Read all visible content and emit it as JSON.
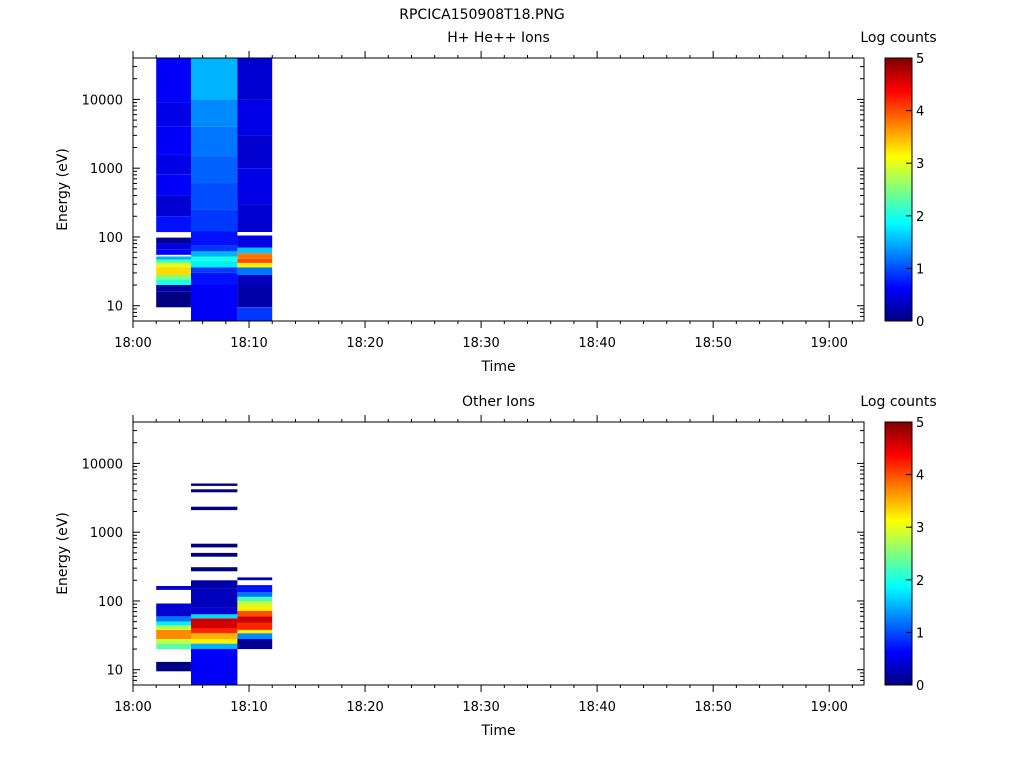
{
  "figure": {
    "filename": "RPCICA150908T18.PNG"
  },
  "chart_data": [
    {
      "type": "heatmap",
      "title": "H+ He++ Ions",
      "xlabel": "Time",
      "ylabel": "Energy (eV)",
      "x_scale": "time",
      "y_scale": "log",
      "xlim": [
        "18:00",
        "19:03"
      ],
      "ylim": [
        6,
        40000
      ],
      "x_ticks": [
        "18:00",
        "18:10",
        "18:20",
        "18:30",
        "18:40",
        "18:50",
        "19:00"
      ],
      "y_ticks": [
        "10",
        "100",
        "1000",
        "10000"
      ],
      "colorbar": {
        "label": "Log counts",
        "range": [
          0,
          5
        ],
        "ticks": [
          "0",
          "1",
          "2",
          "3",
          "4",
          "5"
        ],
        "colormap": "jet"
      },
      "columns": [
        {
          "start": "18:02",
          "end": "18:05",
          "cells": [
            {
              "e0": 9.5,
              "e1": 16,
              "v": 0.0
            },
            {
              "e0": 16,
              "e1": 20,
              "v": 0.2
            },
            {
              "e0": 20,
              "e1": 24,
              "v": 2.0
            },
            {
              "e0": 24,
              "e1": 28,
              "v": 2.5
            },
            {
              "e0": 28,
              "e1": 36,
              "v": 3.3
            },
            {
              "e0": 36,
              "e1": 42,
              "v": 3.0
            },
            {
              "e0": 42,
              "e1": 47,
              "v": 2.2
            },
            {
              "e0": 47,
              "e1": 52,
              "v": 1.5
            },
            {
              "e0": 55,
              "e1": 65,
              "v": 0.6
            },
            {
              "e0": 65,
              "e1": 80,
              "v": 0.5
            },
            {
              "e0": 80,
              "e1": 98,
              "v": 0.1
            },
            {
              "e0": 118,
              "e1": 200,
              "v": 0.7
            },
            {
              "e0": 200,
              "e1": 400,
              "v": 0.4
            },
            {
              "e0": 400,
              "e1": 800,
              "v": 0.6
            },
            {
              "e0": 800,
              "e1": 1600,
              "v": 0.5
            },
            {
              "e0": 1600,
              "e1": 4000,
              "v": 0.6
            },
            {
              "e0": 4000,
              "e1": 9000,
              "v": 0.5
            },
            {
              "e0": 9000,
              "e1": 40000,
              "v": 0.6
            }
          ]
        },
        {
          "start": "18:05",
          "end": "18:09",
          "cells": [
            {
              "e0": 6,
              "e1": 20,
              "v": 0.6
            },
            {
              "e0": 20,
              "e1": 30,
              "v": 0.7
            },
            {
              "e0": 30,
              "e1": 36,
              "v": 0.9
            },
            {
              "e0": 36,
              "e1": 44,
              "v": 1.8
            },
            {
              "e0": 44,
              "e1": 52,
              "v": 2.0
            },
            {
              "e0": 52,
              "e1": 62,
              "v": 1.5
            },
            {
              "e0": 62,
              "e1": 75,
              "v": 0.9
            },
            {
              "e0": 75,
              "e1": 120,
              "v": 0.7
            },
            {
              "e0": 120,
              "e1": 250,
              "v": 0.9
            },
            {
              "e0": 250,
              "e1": 600,
              "v": 1.0
            },
            {
              "e0": 600,
              "e1": 1500,
              "v": 1.1
            },
            {
              "e0": 1500,
              "e1": 4000,
              "v": 1.2
            },
            {
              "e0": 4000,
              "e1": 10000,
              "v": 1.3
            },
            {
              "e0": 10000,
              "e1": 40000,
              "v": 1.5
            }
          ]
        },
        {
          "start": "18:09",
          "end": "18:12",
          "cells": [
            {
              "e0": 6,
              "e1": 9.5,
              "v": 0.9
            },
            {
              "e0": 9.5,
              "e1": 20,
              "v": 0.2
            },
            {
              "e0": 20,
              "e1": 28,
              "v": 0.3
            },
            {
              "e0": 28,
              "e1": 36,
              "v": 1.2
            },
            {
              "e0": 36,
              "e1": 42,
              "v": 3.2
            },
            {
              "e0": 42,
              "e1": 48,
              "v": 4.0
            },
            {
              "e0": 48,
              "e1": 58,
              "v": 3.8
            },
            {
              "e0": 58,
              "e1": 70,
              "v": 1.6
            },
            {
              "e0": 70,
              "e1": 105,
              "v": 0.5
            },
            {
              "e0": 118,
              "e1": 300,
              "v": 0.4
            },
            {
              "e0": 300,
              "e1": 1000,
              "v": 0.5
            },
            {
              "e0": 1000,
              "e1": 3000,
              "v": 0.4
            },
            {
              "e0": 3000,
              "e1": 10000,
              "v": 0.5
            },
            {
              "e0": 10000,
              "e1": 40000,
              "v": 0.4
            }
          ]
        }
      ]
    },
    {
      "type": "heatmap",
      "title": "Other Ions",
      "xlabel": "Time",
      "ylabel": "Energy (eV)",
      "x_scale": "time",
      "y_scale": "log",
      "xlim": [
        "18:00",
        "19:03"
      ],
      "ylim": [
        6,
        40000
      ],
      "x_ticks": [
        "18:00",
        "18:10",
        "18:20",
        "18:30",
        "18:40",
        "18:50",
        "19:00"
      ],
      "y_ticks": [
        "10",
        "100",
        "1000",
        "10000"
      ],
      "colorbar": {
        "label": "Log counts",
        "range": [
          0,
          5
        ],
        "ticks": [
          "0",
          "1",
          "2",
          "3",
          "4",
          "5"
        ],
        "colormap": "jet"
      },
      "columns": [
        {
          "start": "18:02",
          "end": "18:05",
          "cells": [
            {
              "e0": 9.5,
              "e1": 13,
              "v": 0.0
            },
            {
              "e0": 20,
              "e1": 24,
              "v": 2.3
            },
            {
              "e0": 24,
              "e1": 28,
              "v": 2.8
            },
            {
              "e0": 28,
              "e1": 38,
              "v": 3.7
            },
            {
              "e0": 38,
              "e1": 44,
              "v": 2.8
            },
            {
              "e0": 44,
              "e1": 50,
              "v": 1.8
            },
            {
              "e0": 50,
              "e1": 60,
              "v": 1.2
            },
            {
              "e0": 60,
              "e1": 92,
              "v": 0.4
            },
            {
              "e0": 145,
              "e1": 165,
              "v": 0.4
            }
          ]
        },
        {
          "start": "18:05",
          "end": "18:09",
          "cells": [
            {
              "e0": 6,
              "e1": 20,
              "v": 0.6
            },
            {
              "e0": 20,
              "e1": 24,
              "v": 1.5
            },
            {
              "e0": 24,
              "e1": 28,
              "v": 3.2
            },
            {
              "e0": 28,
              "e1": 34,
              "v": 3.5
            },
            {
              "e0": 34,
              "e1": 40,
              "v": 4.2
            },
            {
              "e0": 40,
              "e1": 56,
              "v": 4.6
            },
            {
              "e0": 56,
              "e1": 64,
              "v": 1.7
            },
            {
              "e0": 64,
              "e1": 80,
              "v": 0.4
            },
            {
              "e0": 80,
              "e1": 150,
              "v": 0.3
            },
            {
              "e0": 150,
              "e1": 200,
              "v": 0.2
            },
            {
              "e0": 270,
              "e1": 310,
              "v": 0.0
            },
            {
              "e0": 440,
              "e1": 500,
              "v": 0.0
            },
            {
              "e0": 600,
              "e1": 680,
              "v": 0.0
            },
            {
              "e0": 2100,
              "e1": 2350,
              "v": 0.0
            },
            {
              "e0": 3800,
              "e1": 4200,
              "v": 0.0
            },
            {
              "e0": 4700,
              "e1": 5100,
              "v": 0.0
            }
          ]
        },
        {
          "start": "18:09",
          "end": "18:12",
          "cells": [
            {
              "e0": 20,
              "e1": 28,
              "v": 0.1
            },
            {
              "e0": 28,
              "e1": 34,
              "v": 1.3
            },
            {
              "e0": 34,
              "e1": 38,
              "v": 3.2
            },
            {
              "e0": 38,
              "e1": 48,
              "v": 4.2
            },
            {
              "e0": 48,
              "e1": 60,
              "v": 4.6
            },
            {
              "e0": 60,
              "e1": 72,
              "v": 4.0
            },
            {
              "e0": 72,
              "e1": 86,
              "v": 3.2
            },
            {
              "e0": 86,
              "e1": 100,
              "v": 2.8
            },
            {
              "e0": 100,
              "e1": 115,
              "v": 2.2
            },
            {
              "e0": 115,
              "e1": 135,
              "v": 1.2
            },
            {
              "e0": 135,
              "e1": 170,
              "v": 0.7
            },
            {
              "e0": 200,
              "e1": 220,
              "v": 0.3
            }
          ]
        }
      ]
    }
  ]
}
